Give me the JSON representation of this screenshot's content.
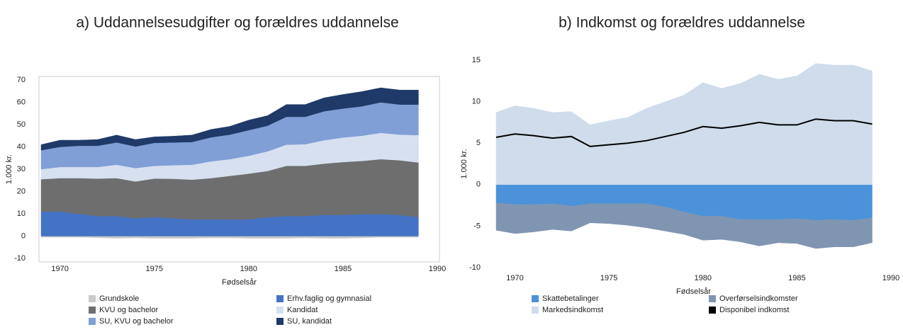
{
  "chart_data": [
    {
      "type": "stacked-area",
      "title": "a) Uddannelsesudgifter og forældres uddannelse",
      "xlabel": "Fødselsår",
      "ylabel": "1.000 kr.",
      "x": [
        1969,
        1970,
        1971,
        1972,
        1973,
        1974,
        1975,
        1976,
        1977,
        1978,
        1979,
        1980,
        1981,
        1982,
        1983,
        1984,
        1985,
        1986,
        1987,
        1988,
        1989
      ],
      "xlim": [
        1969,
        1990
      ],
      "xticks": [
        1970,
        1975,
        1980,
        1985,
        1990
      ],
      "ylim": [
        -10,
        70
      ],
      "yticks": [
        -10,
        0,
        10,
        20,
        30,
        40,
        50,
        60,
        70
      ],
      "series": [
        {
          "name": "Grundskole",
          "color": "#c9c9c9",
          "values": [
            -0.5,
            -0.5,
            -0.5,
            -0.7,
            -1,
            -0.8,
            -1,
            -1,
            -1,
            -0.8,
            -0.8,
            -1,
            -1,
            -1,
            -0.8,
            -1,
            -1,
            -0.8,
            -0.5,
            -0.5,
            -0.5
          ]
        },
        {
          "name": "Erhv.faglig og gymnasial",
          "color": "#4472c4",
          "values": [
            11,
            11,
            10,
            9,
            9,
            8,
            8.5,
            8,
            7.5,
            7.5,
            7.5,
            7.5,
            8.5,
            9,
            9,
            9.5,
            9.5,
            9.8,
            9.8,
            9.5,
            8.5
          ]
        },
        {
          "name": "KVU og bachelor",
          "color": "#6e6e6e",
          "values": [
            14.5,
            15,
            16,
            16.8,
            17,
            16.5,
            17.3,
            17.7,
            17.8,
            18.5,
            19.5,
            20.5,
            20.7,
            22.5,
            22.5,
            23,
            23.7,
            23.9,
            24.7,
            24.5,
            24.5
          ]
        },
        {
          "name": "Kandidat",
          "color": "#d6e0f0",
          "values": [
            4.5,
            5,
            5,
            5.2,
            6,
            6,
            5.7,
            6.1,
            6.7,
            7.5,
            7.5,
            8,
            8.8,
            9.5,
            9.7,
            10.5,
            11,
            11.3,
            11.8,
            11.5,
            12.3
          ]
        },
        {
          "name": "SU, KVU og bachelor",
          "color": "#7f9fd6",
          "values": [
            8.5,
            9,
            9.5,
            9.5,
            10,
            9.7,
            10.3,
            10.2,
            10.2,
            10.8,
            11,
            11.5,
            11.5,
            12.5,
            12.3,
            13,
            13,
            13.2,
            13.7,
            13.5,
            13.7
          ]
        },
        {
          "name": "SU, kandidat",
          "color": "#1f3a68",
          "values": [
            2.5,
            3,
            2.5,
            2.8,
            3.3,
            3.1,
            2.7,
            2.8,
            3.1,
            3.5,
            3.7,
            4.5,
            4.5,
            5.5,
            5.5,
            6,
            6.3,
            6.6,
            6.5,
            6.5,
            6.5
          ]
        }
      ]
    },
    {
      "type": "stacked-area",
      "title": "b) Indkomst og forældres uddannelse",
      "xlabel": "Fødselsår",
      "ylabel": "1.000 kr.",
      "x": [
        1969,
        1970,
        1971,
        1972,
        1973,
        1974,
        1975,
        1976,
        1977,
        1978,
        1979,
        1980,
        1981,
        1982,
        1983,
        1984,
        1985,
        1986,
        1987,
        1988,
        1989
      ],
      "xlim": [
        1969,
        1990
      ],
      "xticks": [
        1970,
        1975,
        1980,
        1985,
        1990
      ],
      "ylim": [
        -10,
        15
      ],
      "yticks": [
        -10,
        -5,
        0,
        5,
        10,
        15
      ],
      "series": [
        {
          "name": "Skattebetalinger",
          "color": "#4b92da",
          "values": [
            -2.2,
            -2.4,
            -2.4,
            -2.3,
            -2.6,
            -2.3,
            -2.3,
            -2.3,
            -2.3,
            -2.7,
            -3.3,
            -3.8,
            -3.8,
            -4.2,
            -4.2,
            -4.2,
            -4.1,
            -4.3,
            -4.2,
            -4.3,
            -4
          ]
        },
        {
          "name": "Overførselsindkomster",
          "color": "#8095b2",
          "values": [
            -3.3,
            -3.5,
            -3.3,
            -3.1,
            -3,
            -2.3,
            -2.4,
            -2.6,
            -2.9,
            -2.9,
            -2.7,
            -2.9,
            -2.8,
            -2.7,
            -3.2,
            -2.8,
            -3,
            -3.4,
            -3.3,
            -3.2,
            -3
          ]
        },
        {
          "name": "Markedsindkomst",
          "color": "#cfdcec",
          "values": [
            8.7,
            9.5,
            9.2,
            8.7,
            8.8,
            7.2,
            7.7,
            8.1,
            9.2,
            10,
            10.8,
            12.3,
            11.6,
            12.2,
            13.3,
            12.7,
            13.1,
            14.6,
            14.4,
            14.4,
            13.7
          ]
        },
        {
          "name": "Disponibel indkomst",
          "color": "#000000",
          "type": "line",
          "values": [
            5.7,
            6.1,
            5.9,
            5.6,
            5.8,
            4.6,
            4.8,
            5,
            5.3,
            5.8,
            6.3,
            7,
            6.8,
            7.1,
            7.5,
            7.2,
            7.2,
            7.9,
            7.7,
            7.7,
            7.3
          ]
        }
      ]
    }
  ]
}
